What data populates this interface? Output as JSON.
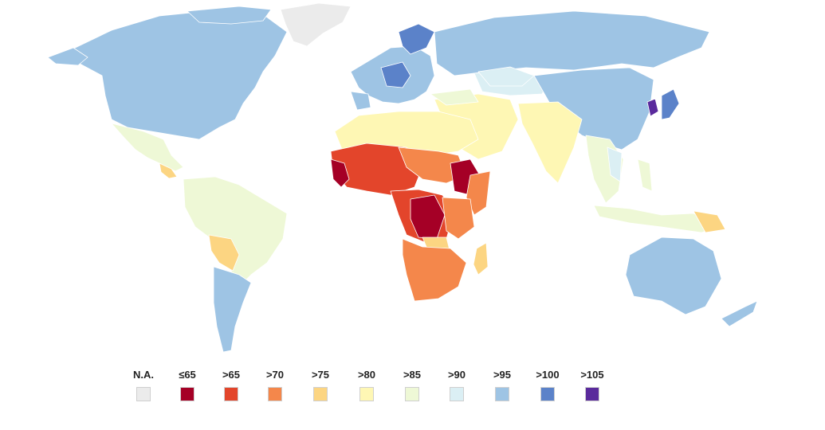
{
  "legend": {
    "labels": [
      "N.A.",
      "≤65",
      ">65",
      ">70",
      ">75",
      ">80",
      ">85",
      ">90",
      ">95",
      ">100",
      ">105"
    ]
  },
  "colors": {
    "na": "#ebebeb",
    "le65": "#a50026",
    "gt65": "#e3452b",
    "gt70": "#f4874b",
    "gt75": "#fcd582",
    "gt80": "#fef7b4",
    "gt85": "#eef8d6",
    "gt90": "#dbeff4",
    "gt95": "#9ec4e4",
    "gt100": "#5b82c9",
    "gt105": "#5a2a9c"
  }
}
